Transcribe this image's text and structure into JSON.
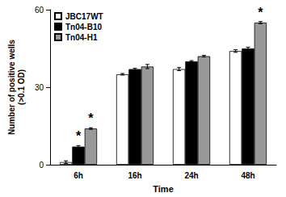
{
  "chart_data": {
    "type": "bar",
    "xlabel": "Time",
    "ylabel": "Number of positive wells\n(>0.1 OD)",
    "categories": [
      "6h",
      "16h",
      "24h",
      "48h"
    ],
    "series": [
      {
        "name": "JBC17WT",
        "color": "#ffffff",
        "values": [
          1,
          35,
          37,
          44
        ],
        "errors": [
          0.5,
          0.3,
          0.6,
          0.5
        ]
      },
      {
        "name": "Tn04-B10",
        "color": "#000000",
        "values": [
          7,
          37,
          40,
          45
        ],
        "errors": [
          0.4,
          0.3,
          0.3,
          0.5
        ]
      },
      {
        "name": "Tn04-H1",
        "color": "#999999",
        "values": [
          14,
          38,
          42,
          55
        ],
        "errors": [
          0.3,
          0.8,
          0.3,
          0.4
        ]
      }
    ],
    "annotations": [
      {
        "text": "*",
        "category": "6h",
        "series": "Tn04-B10"
      },
      {
        "text": "*",
        "category": "6h",
        "series": "Tn04-H1"
      },
      {
        "text": "*",
        "category": "48h",
        "series": "Tn04-H1"
      }
    ],
    "ylim": [
      0,
      60
    ],
    "yticks": [
      0,
      30,
      60
    ],
    "grid": false,
    "legend": "upper left"
  }
}
